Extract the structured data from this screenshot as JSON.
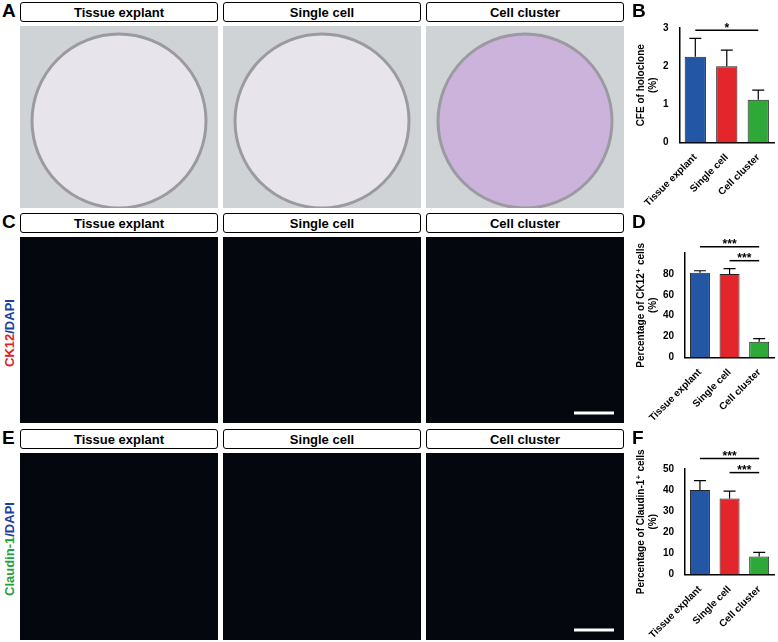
{
  "chart_data": [
    {
      "panel": "B",
      "type": "bar",
      "categories": [
        "Tissue explant",
        "Single cell",
        "Cell cluster"
      ],
      "values": [
        2.25,
        2.0,
        1.12
      ],
      "errors": [
        0.48,
        0.42,
        0.25
      ],
      "colors": [
        "#2456a6",
        "#e3262b",
        "#2fa83a"
      ],
      "ylabel": [
        "CFE of holoclone",
        "(%)"
      ],
      "ylim": [
        0,
        3
      ],
      "yticks": [
        0,
        1,
        2,
        3
      ],
      "grid": false,
      "annotations": [
        {
          "from": "Tissue explant",
          "to": "Cell cluster",
          "text": "*"
        }
      ]
    },
    {
      "panel": "D",
      "type": "bar",
      "categories": [
        "Tissue explant",
        "Single cell",
        "Cell cluster"
      ],
      "values": [
        81,
        80,
        15
      ],
      "errors": [
        2,
        5,
        3
      ],
      "colors": [
        "#2456a6",
        "#e3262b",
        "#2fa83a"
      ],
      "ylabel": [
        "Percentage of CK12⁺ cells",
        "(%)"
      ],
      "ylim": [
        0,
        100
      ],
      "yticks": [
        0,
        20,
        40,
        60,
        80
      ],
      "grid": false,
      "annotations": [
        {
          "from": "Single cell",
          "to": "Cell cluster",
          "text": "***"
        },
        {
          "from": "Tissue explant",
          "to": "Cell cluster",
          "text": "***"
        }
      ]
    },
    {
      "panel": "F",
      "type": "bar",
      "categories": [
        "Tissue explant",
        "Single cell",
        "Cell cluster"
      ],
      "values": [
        40,
        36,
        8.5
      ],
      "errors": [
        4.5,
        3.5,
        2
      ],
      "colors": [
        "#2456a6",
        "#e3262b",
        "#2fa83a"
      ],
      "ylabel": [
        "Percentage of Claudin-1⁺ cells",
        "(%)"
      ],
      "ylim": [
        0,
        50
      ],
      "yticks": [
        0,
        10,
        20,
        30,
        40,
        50
      ],
      "grid": false,
      "annotations": [
        {
          "from": "Single cell",
          "to": "Cell cluster",
          "text": "***"
        },
        {
          "from": "Tissue explant",
          "to": "Cell cluster",
          "text": "***"
        }
      ]
    }
  ],
  "image_panels": [
    {
      "panel": "A",
      "labels": [
        "Tissue explant",
        "Single cell",
        "Cell cluster"
      ]
    },
    {
      "panel": "C",
      "labels": [
        "Tissue explant",
        "Single cell",
        "Cell cluster"
      ],
      "stain": [
        {
          "text": "CK12",
          "color": "#e0202a"
        },
        {
          "text": "/",
          "color": "#1a3fa0"
        },
        {
          "text": "DAPI",
          "color": "#1a3fa0"
        }
      ]
    },
    {
      "panel": "E",
      "labels": [
        "Tissue explant",
        "Single cell",
        "Cell cluster"
      ],
      "stain": [
        {
          "text": "Claudin-1",
          "color": "#22a037"
        },
        {
          "text": "/",
          "color": "#1a3fa0"
        },
        {
          "text": "DAPI",
          "color": "#1a3fa0"
        }
      ]
    }
  ]
}
